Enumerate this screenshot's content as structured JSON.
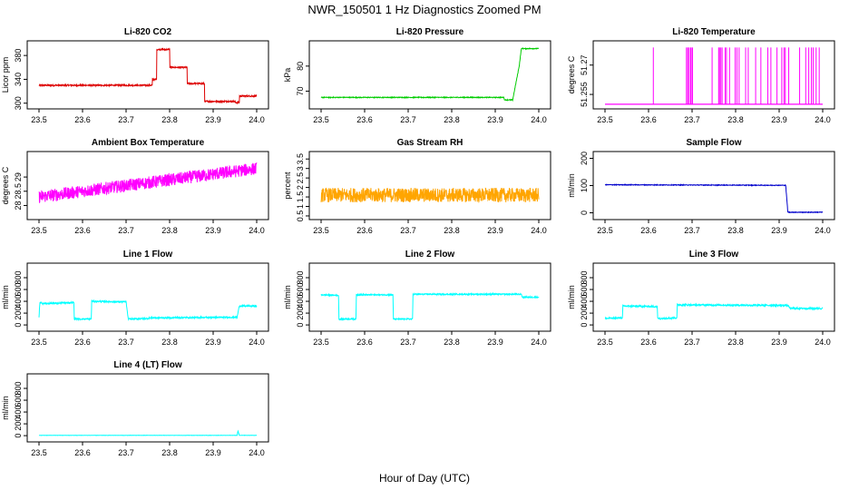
{
  "figure": {
    "title": "NWR_150501  1 Hz Diagnostics Zoomed PM",
    "xlabel": "Hour of Day (UTC)"
  },
  "chart_data": [
    {
      "type": "line",
      "title": "Li-820 CO2",
      "xlabel": "",
      "ylabel": "Licor ppm",
      "color": "#dd0000",
      "xlim": [
        23.5,
        24.0
      ],
      "ylim": [
        295,
        400
      ],
      "yticks": [
        300,
        340,
        380
      ],
      "xticks": [
        23.5,
        23.6,
        23.7,
        23.8,
        23.9,
        24.0
      ],
      "series": [
        {
          "name": "CO2",
          "x": [
            23.5,
            23.76,
            23.76,
            23.77,
            23.77,
            23.8,
            23.8,
            23.84,
            23.84,
            23.88,
            23.88,
            23.95,
            23.95,
            23.96,
            23.96,
            24.0
          ],
          "y": [
            330,
            330,
            340,
            340,
            390,
            390,
            360,
            360,
            333,
            333,
            303,
            303,
            301,
            301,
            312,
            312
          ]
        }
      ],
      "noise": 1.2
    },
    {
      "type": "line",
      "title": "Li-820 Pressure",
      "xlabel": "",
      "ylabel": "kPa",
      "color": "#00cc00",
      "xlim": [
        23.5,
        24.0
      ],
      "ylim": [
        64,
        89
      ],
      "yticks": [
        70,
        80
      ],
      "xticks": [
        23.5,
        23.6,
        23.7,
        23.8,
        23.9,
        24.0
      ],
      "series": [
        {
          "name": "Pressure",
          "x": [
            23.5,
            23.92,
            23.921,
            23.94,
            23.955,
            23.96,
            24.0
          ],
          "y": [
            67.5,
            67.5,
            66.5,
            66.5,
            80,
            87,
            87
          ]
        }
      ],
      "noise": 0.15
    },
    {
      "type": "line",
      "title": "Li-820 Temperature",
      "xlabel": "",
      "ylabel": "degrees C",
      "color": "#ff00ff",
      "xlim": [
        23.5,
        24.0
      ],
      "ylim": [
        51.249,
        51.281
      ],
      "yticks": [
        51.255,
        51.27
      ],
      "xticks": [
        23.5,
        23.6,
        23.7,
        23.8,
        23.9,
        24.0
      ],
      "baseline": 51.25,
      "spike_top": 51.279,
      "spikes": [
        23.611,
        23.687,
        23.69,
        23.692,
        23.696,
        23.698,
        23.701,
        23.746,
        23.761,
        23.763,
        23.766,
        23.769,
        23.776,
        23.779,
        23.786,
        23.799,
        23.803,
        23.808,
        23.823,
        23.829,
        23.846,
        23.858,
        23.874,
        23.881,
        23.895,
        23.906,
        23.911,
        23.914,
        23.922,
        23.947,
        23.961,
        23.968,
        23.974,
        23.978,
        23.985,
        23.992
      ]
    },
    {
      "type": "line",
      "title": "Ambient Box Temperature",
      "xlabel": "",
      "ylabel": "degrees C",
      "color": "#ff00ff",
      "xlim": [
        23.5,
        24.0
      ],
      "ylim": [
        27.6,
        29.8
      ],
      "yticks": [
        28.0,
        28.5,
        29.0
      ],
      "xticks": [
        23.5,
        23.6,
        23.7,
        23.8,
        23.9,
        24.0
      ],
      "series": [
        {
          "name": "Box Temp",
          "x": [
            23.5,
            24.0
          ],
          "y": [
            28.3,
            29.3
          ]
        }
      ],
      "noise": 0.22
    },
    {
      "type": "line",
      "title": "Gas Stream RH",
      "xlabel": "",
      "ylabel": "percent",
      "color": "#ffa500",
      "xlim": [
        23.5,
        24.0
      ],
      "ylim": [
        0.45,
        3.75
      ],
      "yticks": [
        0.5,
        1.0,
        1.5,
        2.0,
        2.5,
        3.0,
        3.5
      ],
      "xticks": [
        23.5,
        23.6,
        23.7,
        23.8,
        23.9,
        24.0
      ],
      "series": [
        {
          "name": "RH",
          "x": [
            23.5,
            24.0
          ],
          "y": [
            1.6,
            1.6
          ]
        }
      ],
      "noise": 0.38
    },
    {
      "type": "line",
      "title": "Sample Flow",
      "xlabel": "",
      "ylabel": "ml/min",
      "color": "#0000cc",
      "xlim": [
        23.5,
        24.0
      ],
      "ylim": [
        -15,
        215
      ],
      "yticks": [
        0,
        100,
        200
      ],
      "xticks": [
        23.5,
        23.6,
        23.7,
        23.8,
        23.9,
        24.0
      ],
      "series": [
        {
          "name": "Sample Flow",
          "x": [
            23.5,
            23.915,
            23.92,
            24.0
          ],
          "y": [
            103,
            101,
            2,
            2
          ]
        }
      ],
      "noise": 1.2
    },
    {
      "type": "line",
      "title": "Line 1 Flow",
      "xlabel": "",
      "ylabel": "ml/min",
      "color": "#00ffff",
      "xlim": [
        23.5,
        24.0
      ],
      "ylim": [
        -60,
        1000
      ],
      "yticks": [
        0,
        200,
        400,
        600,
        800
      ],
      "xticks": [
        23.5,
        23.6,
        23.7,
        23.8,
        23.9,
        24.0
      ],
      "series": [
        {
          "name": "Line 1",
          "x": [
            23.5,
            23.502,
            23.51,
            23.58,
            23.581,
            23.62,
            23.621,
            23.7,
            23.705,
            23.75,
            23.755,
            23.955,
            23.96,
            24.0
          ],
          "y": [
            130,
            380,
            360,
            380,
            100,
            100,
            400,
            390,
            100,
            110,
            120,
            130,
            320,
            320
          ]
        }
      ],
      "noise": 12
    },
    {
      "type": "line",
      "title": "Line 2 Flow",
      "xlabel": "",
      "ylabel": "ml/min",
      "color": "#00ffff",
      "xlim": [
        23.5,
        24.0
      ],
      "ylim": [
        -60,
        1000
      ],
      "yticks": [
        0,
        200,
        400,
        600,
        800
      ],
      "xticks": [
        23.5,
        23.6,
        23.7,
        23.8,
        23.9,
        24.0
      ],
      "series": [
        {
          "name": "Line 2",
          "x": [
            23.5,
            23.54,
            23.541,
            23.58,
            23.581,
            23.665,
            23.666,
            23.71,
            23.711,
            23.96,
            23.962,
            24.0
          ],
          "y": [
            510,
            500,
            100,
            100,
            510,
            510,
            100,
            100,
            520,
            520,
            470,
            470
          ]
        }
      ],
      "noise": 10
    },
    {
      "type": "line",
      "title": "Line 3 Flow",
      "xlabel": "",
      "ylabel": "ml/min",
      "color": "#00ffff",
      "xlim": [
        23.5,
        24.0
      ],
      "ylim": [
        -60,
        1000
      ],
      "yticks": [
        0,
        200,
        400,
        600,
        800
      ],
      "xticks": [
        23.5,
        23.6,
        23.7,
        23.8,
        23.9,
        24.0
      ],
      "series": [
        {
          "name": "Line 3",
          "x": [
            23.5,
            23.54,
            23.541,
            23.62,
            23.621,
            23.665,
            23.666,
            23.92,
            23.925,
            24.0
          ],
          "y": [
            110,
            120,
            320,
            310,
            110,
            120,
            340,
            330,
            280,
            280
          ]
        }
      ],
      "noise": 14
    },
    {
      "type": "line",
      "title": "Line 4 (LT) Flow",
      "xlabel": "",
      "ylabel": "ml/min",
      "color": "#00ffff",
      "xlim": [
        23.5,
        24.0
      ],
      "ylim": [
        -60,
        1000
      ],
      "yticks": [
        0,
        200,
        400,
        600,
        800
      ],
      "xticks": [
        23.5,
        23.6,
        23.7,
        23.8,
        23.9,
        24.0
      ],
      "series": [
        {
          "name": "Line 4",
          "x": [
            23.5,
            23.955,
            23.957,
            23.96,
            24.0
          ],
          "y": [
            5,
            5,
            80,
            5,
            5
          ]
        }
      ],
      "noise": 2
    }
  ]
}
